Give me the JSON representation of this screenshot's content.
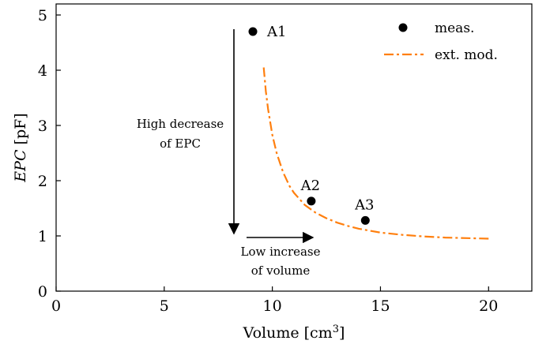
{
  "chart_data": {
    "type": "scatter",
    "xlabel": "Volume [cm",
    "xlabel_sup": "3",
    "xlabel_tail": "]",
    "ylabel_italic": "EPC",
    "ylabel_unit": " [pF]",
    "xlim": [
      0,
      22
    ],
    "ylim": [
      0,
      5.2
    ],
    "x_ticks": [
      0,
      5,
      10,
      15,
      20
    ],
    "y_ticks": [
      0,
      1,
      2,
      3,
      4,
      5
    ],
    "grid": false,
    "legend_position": "top-right",
    "series": [
      {
        "name": "meas.",
        "kind": "points",
        "color": "#000000",
        "points": [
          {
            "label": "A1",
            "x": 9.1,
            "y": 4.7
          },
          {
            "label": "A2",
            "x": 11.8,
            "y": 1.63
          },
          {
            "label": "A3",
            "x": 14.3,
            "y": 1.28
          }
        ]
      },
      {
        "name": "ext. mod.",
        "kind": "dashdot-line",
        "color": "#ff7f0e",
        "x": [
          9.6,
          9.7,
          9.8,
          10.0,
          10.2,
          10.5,
          10.8,
          11.0,
          11.5,
          12.0,
          12.5,
          13.0,
          13.5,
          14.0,
          15.0,
          16.0,
          17.0,
          18.0,
          19.0,
          20.0
        ],
        "y": [
          4.05,
          3.62,
          3.3,
          2.83,
          2.5,
          2.15,
          1.9,
          1.78,
          1.56,
          1.42,
          1.32,
          1.24,
          1.18,
          1.13,
          1.06,
          1.02,
          0.99,
          0.97,
          0.96,
          0.95
        ]
      }
    ],
    "annotations": {
      "decrease_line1": "High decrease",
      "decrease_line2": "of EPC",
      "increase_line1": "Low increase",
      "increase_line2": "of volume"
    }
  }
}
